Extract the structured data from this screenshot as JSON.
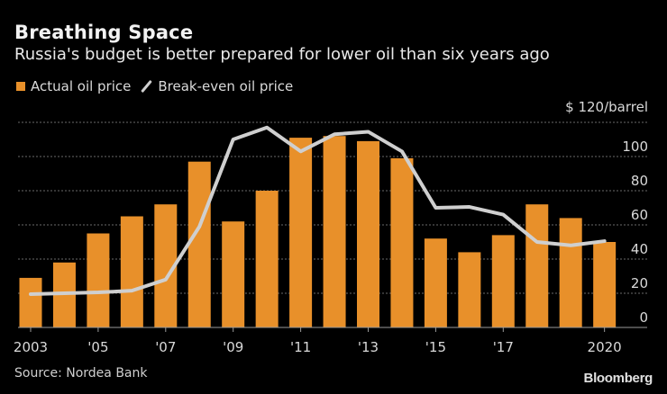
{
  "header": {
    "title": "Breathing Space",
    "subtitle": "Russia's budget is better prepared for lower oil than six years ago"
  },
  "legend": [
    {
      "label": "Actual oil price",
      "icon": "square-swatch-icon",
      "color": "#e8902a"
    },
    {
      "label": "Break-even oil price",
      "icon": "line-swatch-icon",
      "color": "#cfcfcf"
    }
  ],
  "footer": {
    "source": "Source: Nordea Bank",
    "brand": "Bloomberg"
  },
  "chart_data": {
    "type": "bar",
    "title": "Breathing Space",
    "subtitle": "Russia's budget is better prepared for lower oil than six years ago",
    "xlabel": "",
    "ylabel": "$/barrel",
    "y_unit_label": "$ 120/barrel",
    "ylim": [
      0,
      120
    ],
    "yticks": [
      0,
      20,
      40,
      60,
      80,
      100,
      120
    ],
    "ytick_labels": [
      "0",
      "20",
      "40",
      "60",
      "80",
      "100",
      "$ 120/barrel"
    ],
    "y_axis_position": "right",
    "grid": true,
    "legend_position": "top-left",
    "categories": [
      "2003",
      "2004",
      "2005",
      "2006",
      "2007",
      "2008",
      "2009",
      "2010",
      "2011",
      "2012",
      "2013",
      "2014",
      "2015",
      "2016",
      "2017",
      "2018",
      "2019",
      "2020"
    ],
    "xtick_labels": [
      {
        "year": "2003",
        "label": "2003"
      },
      {
        "year": "2005",
        "label": "'05"
      },
      {
        "year": "2007",
        "label": "'07"
      },
      {
        "year": "2009",
        "label": "'09"
      },
      {
        "year": "2011",
        "label": "'11"
      },
      {
        "year": "2013",
        "label": "'13"
      },
      {
        "year": "2015",
        "label": "'15"
      },
      {
        "year": "2017",
        "label": "'17"
      },
      {
        "year": "2020",
        "label": "2020"
      }
    ],
    "series": [
      {
        "name": "Actual oil price",
        "type": "bar",
        "color": "#e8902a",
        "values": [
          29,
          38,
          55,
          65,
          72,
          97,
          62,
          80,
          111,
          112,
          109,
          99,
          52,
          44,
          54,
          72,
          64,
          50
        ]
      },
      {
        "name": "Break-even oil price",
        "type": "line",
        "color": "#cfcfcf",
        "values": [
          19.5,
          20,
          20.5,
          21.5,
          28,
          59,
          110,
          117,
          103,
          113,
          114.5,
          103,
          70,
          70.5,
          66,
          50,
          48,
          50.5
        ]
      }
    ]
  }
}
